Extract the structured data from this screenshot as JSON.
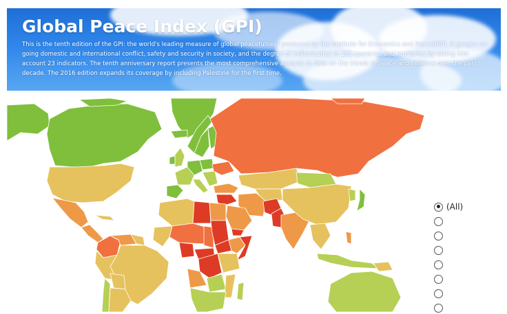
{
  "header": {
    "title": "Global Peace Index (GPI)",
    "description": "This is the tenth edition of the GPI: the world's leading measure of global peacefulness produced by the Institute for Economics and Peace(IEP). It gauges on-going domestic and international conflict, safety and security in society, and the degree of militarisation in 163 countries and territories by taking into account 23 indicators. The tenth anniversary report presents the most comprehensive analysis to date on the trends in peace and violence over the past decade. The 2016 edition expands its coverage by including Palestine for the first time."
  },
  "colors": {
    "very_high_peace": "#7fbf3c",
    "high_peace": "#b6cf55",
    "medium_peace": "#e6c25e",
    "low_peace": "#ee9947",
    "lower_peace": "#f07040",
    "very_low_peace": "#dd3b25"
  },
  "filter": {
    "options": [
      {
        "label": "(All)",
        "selected": true
      },
      {
        "label": "",
        "selected": false
      },
      {
        "label": "",
        "selected": false
      },
      {
        "label": "",
        "selected": false
      },
      {
        "label": "",
        "selected": false
      },
      {
        "label": "",
        "selected": false
      },
      {
        "label": "",
        "selected": false
      },
      {
        "label": "",
        "selected": false
      }
    ]
  }
}
